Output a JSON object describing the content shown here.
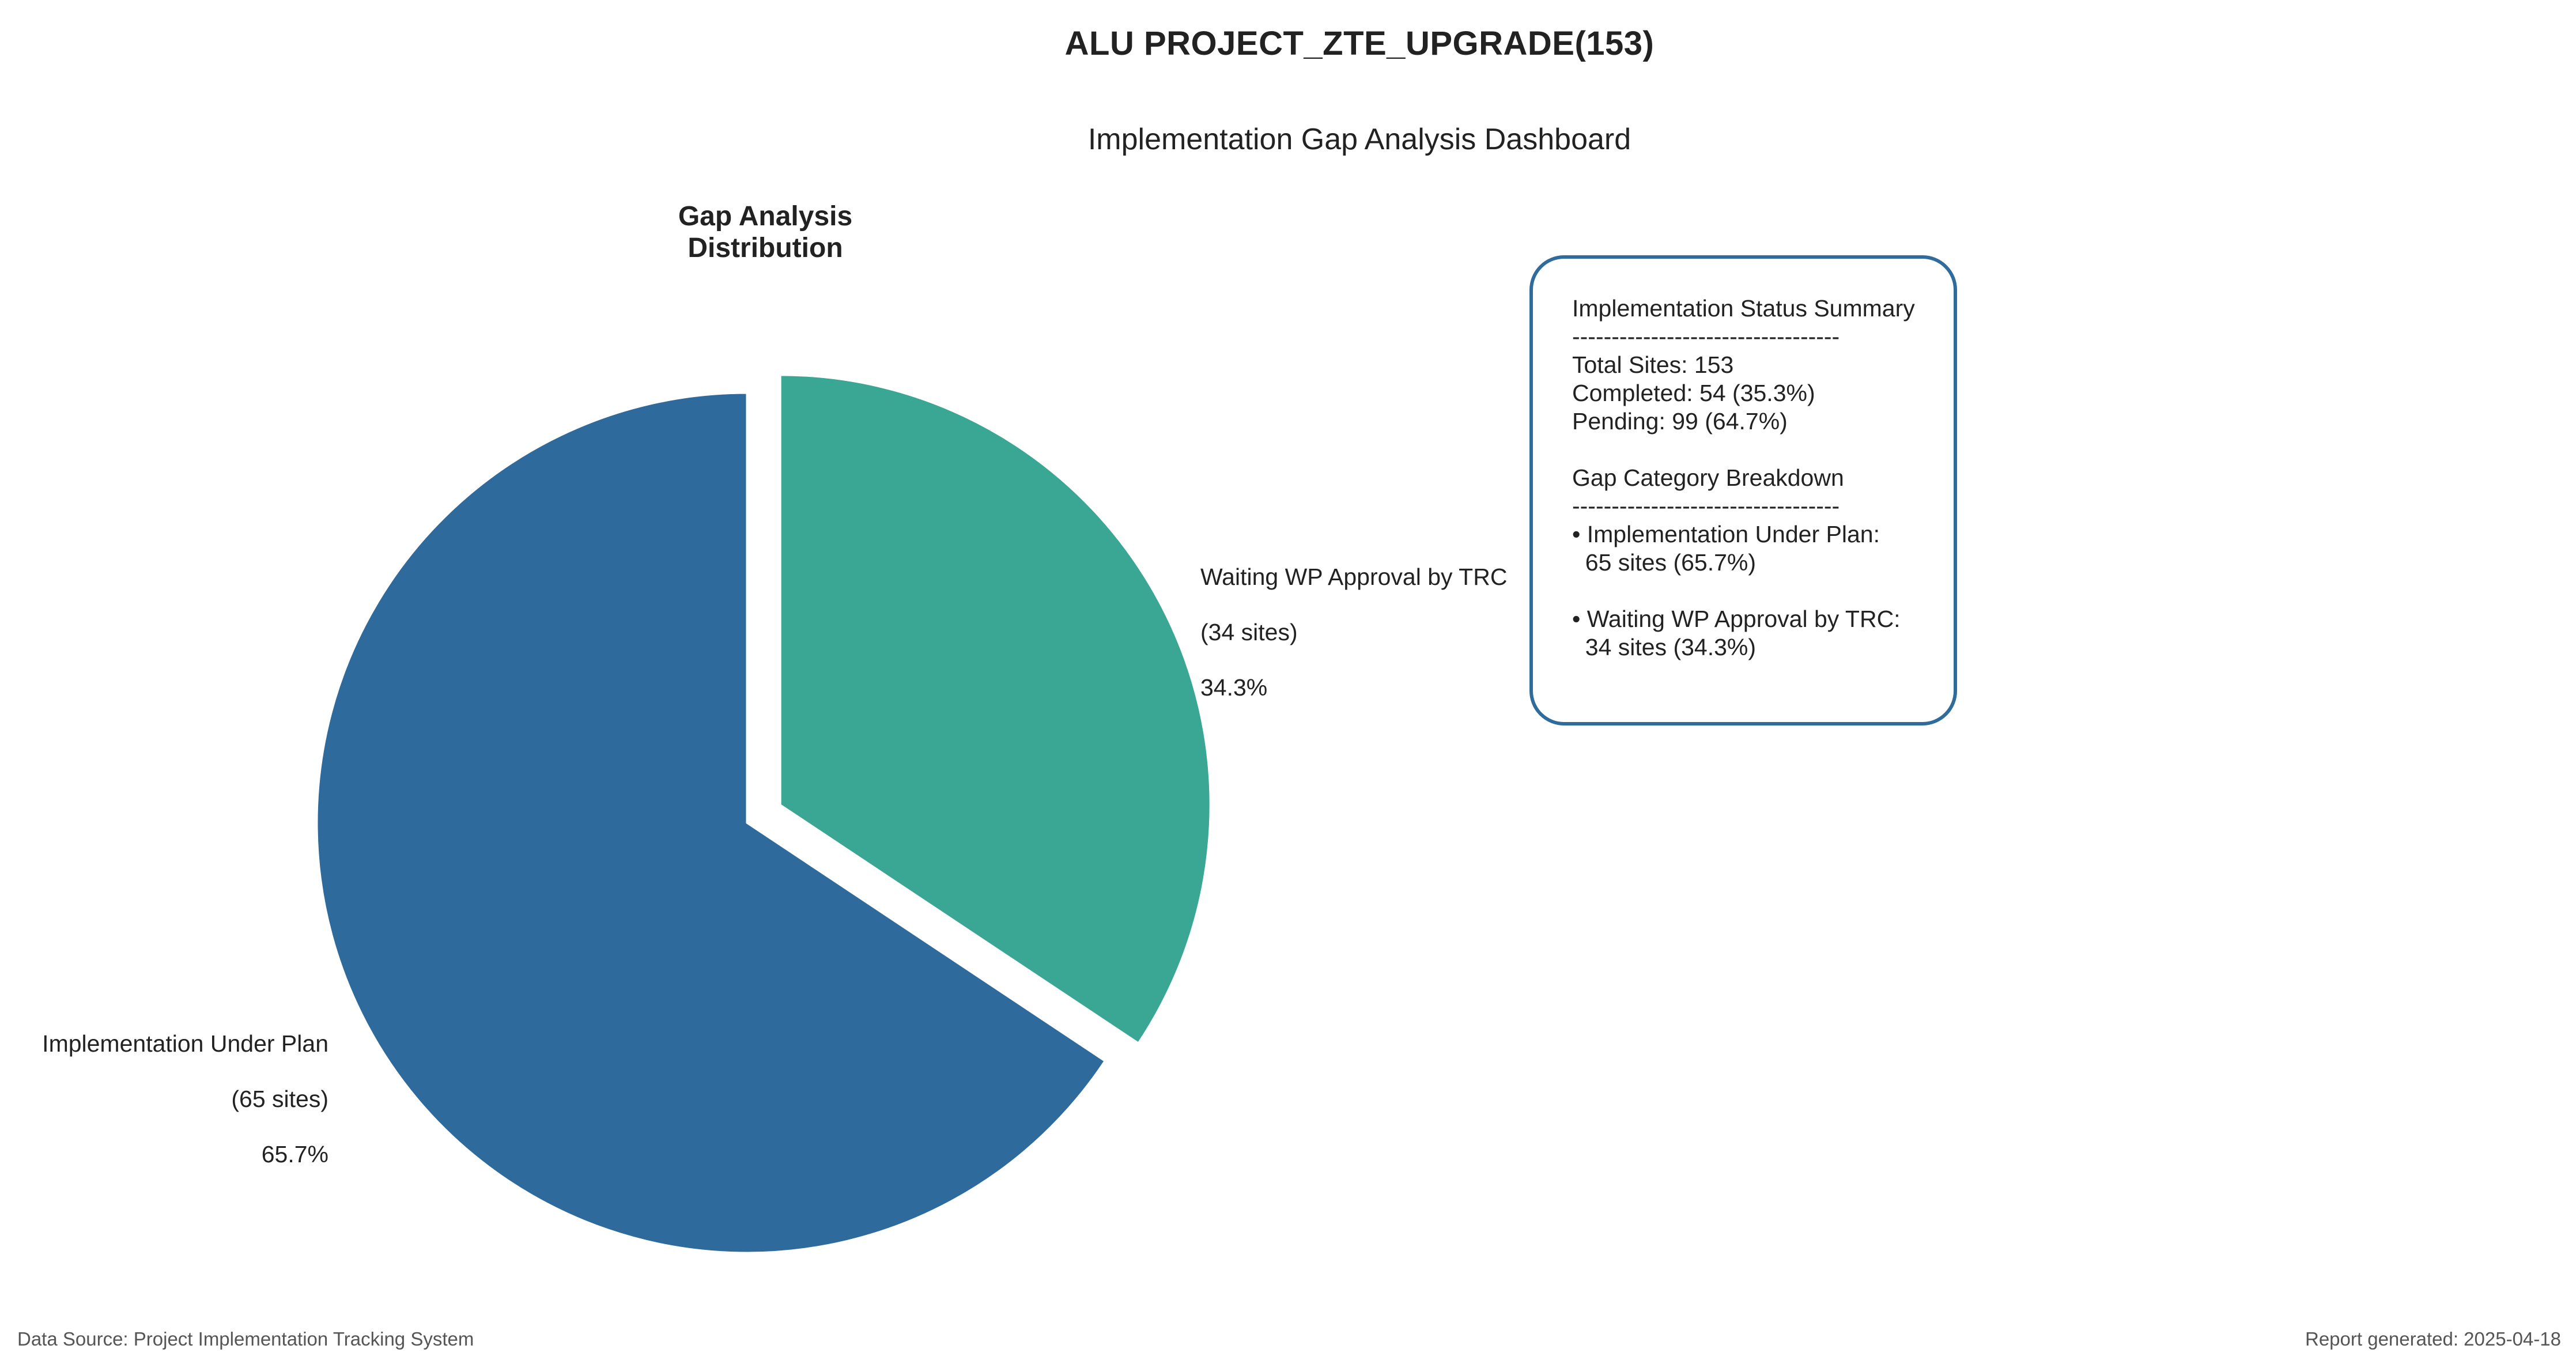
{
  "header": {
    "title": "ALU PROJECT_ZTE_UPGRADE(153)",
    "subtitle": "Implementation Gap Analysis Dashboard"
  },
  "chart_data": {
    "type": "pie",
    "title": "Gap Analysis Distribution",
    "slices": [
      {
        "name": "Waiting WP Approval by TRC",
        "sites_label": "(34 sites)",
        "pct_label": "34.3%",
        "value": 34,
        "percent": 34.3,
        "color": "#3aa794",
        "exploded": true
      },
      {
        "name": "Implementation Under Plan",
        "sites_label": "(65 sites)",
        "pct_label": "65.7%",
        "value": 65,
        "percent": 65.7,
        "color": "#2e6b9c",
        "exploded": false
      }
    ],
    "start_angle": "12 o'clock",
    "direction": "clockwise"
  },
  "summary": {
    "title": "Implementation Status Summary",
    "divider": "----------------------------------",
    "total": "Total Sites: 153",
    "completed": "Completed: 54 (35.3%)",
    "pending": "Pending: 99 (64.7%)",
    "breakdown_title": "Gap Category Breakdown",
    "breakdown_divider": "----------------------------------",
    "item1_line1": "• Implementation Under Plan:",
    "item1_line2": "  65 sites (65.7%)",
    "item2_line1": "• Waiting WP Approval by TRC:",
    "item2_line2": "  34 sites (34.3%)",
    "border_color": "#2f6b9b"
  },
  "footer": {
    "source": "Data Source: Project Implementation Tracking System",
    "generated": "Report generated: 2025-04-18"
  }
}
